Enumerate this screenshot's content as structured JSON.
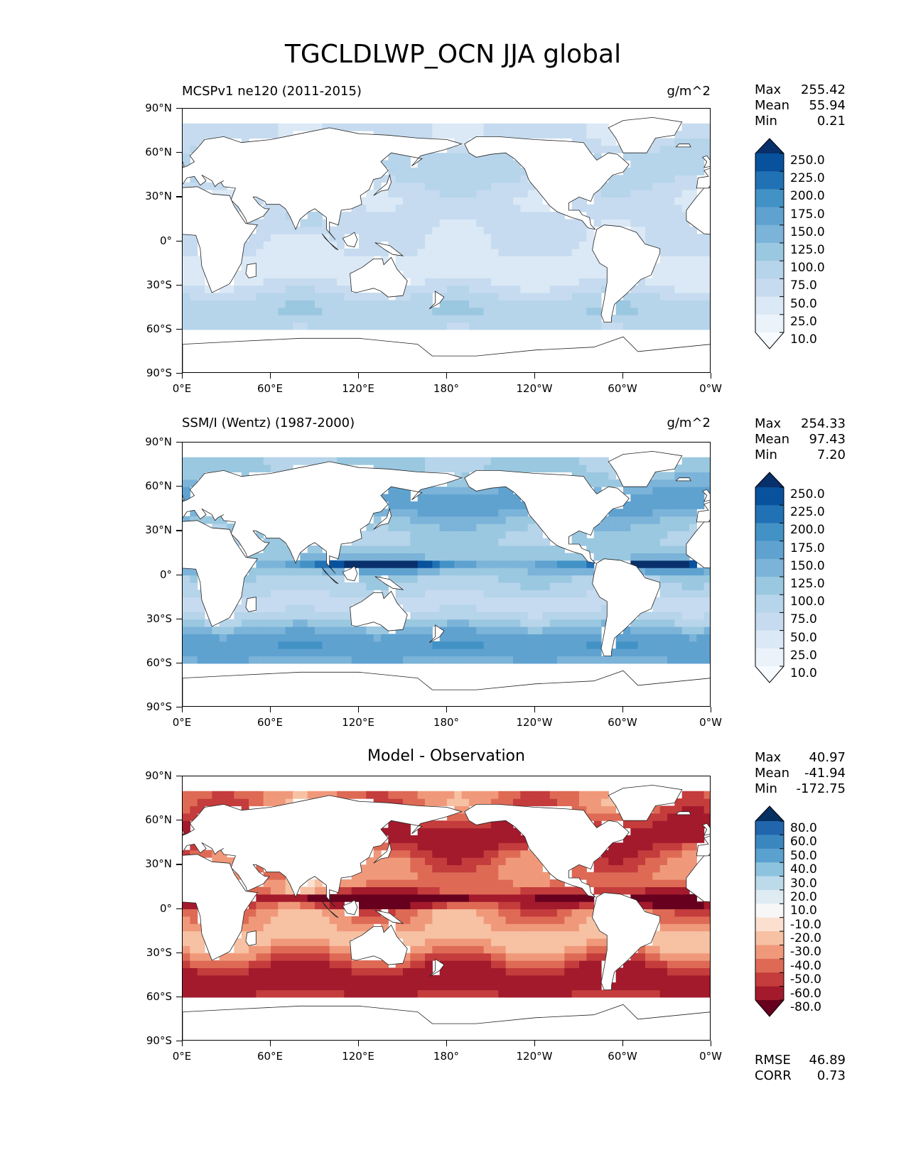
{
  "figure_title": "TGCLDLWP_OCN JJA global",
  "chart_data": [
    {
      "type": "heatmap",
      "title": "MCSPv1 ne120 (2011-2015)",
      "units": "g/m^2",
      "xticks": [
        "0°E",
        "60°E",
        "120°E",
        "180°",
        "120°W",
        "60°W",
        "0°W"
      ],
      "yticks": [
        "90°N",
        "60°N",
        "30°N",
        "0°",
        "30°S",
        "60°S",
        "90°S"
      ],
      "stats": [
        {
          "label": "Max",
          "value": "255.42"
        },
        {
          "label": "Mean",
          "value": "55.94"
        },
        {
          "label": "Min",
          "value": "0.21"
        }
      ],
      "colorbar_labels": [
        "250.0",
        "225.0",
        "200.0",
        "175.0",
        "150.0",
        "125.0",
        "100.0",
        "75.0",
        "50.0",
        "25.0",
        "10.0"
      ],
      "colorbar_colors": [
        "#08306b",
        "#08519c",
        "#2171b5",
        "#4292c6",
        "#5fa2d0",
        "#7bb3d9",
        "#9ac8e0",
        "#b6d4ea",
        "#c6dbef",
        "#dbe9f6",
        "#eaf2fa",
        "#f7fbff"
      ],
      "colormap": "Blues",
      "pattern": {
        "base": 55,
        "band": 70,
        "itcz": 0,
        "tropic_hot": 40
      }
    },
    {
      "type": "heatmap",
      "title": "SSM/I (Wentz) (1987-2000)",
      "units": "g/m^2",
      "xticks": [
        "0°E",
        "60°E",
        "120°E",
        "180°",
        "120°W",
        "60°W",
        "0°W"
      ],
      "yticks": [
        "90°N",
        "60°N",
        "30°N",
        "0°",
        "30°S",
        "60°S",
        "90°S"
      ],
      "stats": [
        {
          "label": "Max",
          "value": "254.33"
        },
        {
          "label": "Mean",
          "value": "97.43"
        },
        {
          "label": "Min",
          "value": "7.20"
        }
      ],
      "colorbar_labels": [
        "250.0",
        "225.0",
        "200.0",
        "175.0",
        "150.0",
        "125.0",
        "100.0",
        "75.0",
        "50.0",
        "25.0",
        "10.0"
      ],
      "colorbar_colors": [
        "#08306b",
        "#08519c",
        "#2171b5",
        "#4292c6",
        "#5fa2d0",
        "#7bb3d9",
        "#9ac8e0",
        "#b6d4ea",
        "#c6dbef",
        "#dbe9f6",
        "#eaf2fa",
        "#f7fbff"
      ],
      "colormap": "Blues",
      "pattern": {
        "base": 100,
        "band": 120,
        "itcz": 170,
        "tropic_hot": 20
      }
    },
    {
      "type": "heatmap",
      "title": "Model - Observation",
      "xticks": [
        "0°E",
        "60°E",
        "120°E",
        "180°",
        "120°W",
        "60°W",
        "0°W"
      ],
      "yticks": [
        "90°N",
        "60°N",
        "30°N",
        "0°",
        "30°S",
        "60°S",
        "90°S"
      ],
      "stats": [
        {
          "label": "Max",
          "value": "40.97"
        },
        {
          "label": "Mean",
          "value": "-41.94"
        },
        {
          "label": "Min",
          "value": "-172.75"
        }
      ],
      "colorbar_labels": [
        "80.0",
        "60.0",
        "50.0",
        "40.0",
        "30.0",
        "20.0",
        "10.0",
        "-10.0",
        "-20.0",
        "-30.0",
        "-40.0",
        "-50.0",
        "-60.0",
        "-80.0"
      ],
      "colorbar_colors": [
        "#053061",
        "#2166ac",
        "#3a87c0",
        "#5aa1cf",
        "#8ec3df",
        "#bcdaea",
        "#deebf2",
        "#f7f7f7",
        "#fbe0d0",
        "#f7c1a3",
        "#f0997a",
        "#de6a55",
        "#c43c3c",
        "#a31a2c",
        "#67001f"
      ],
      "colormap": "RdBu",
      "pattern": {
        "base": -40,
        "band": -50,
        "itcz": -120,
        "tropic_hot": 25
      },
      "rmse": {
        "label": "RMSE",
        "value": "46.89"
      },
      "corr": {
        "label": "CORR",
        "value": "0.73"
      }
    }
  ]
}
